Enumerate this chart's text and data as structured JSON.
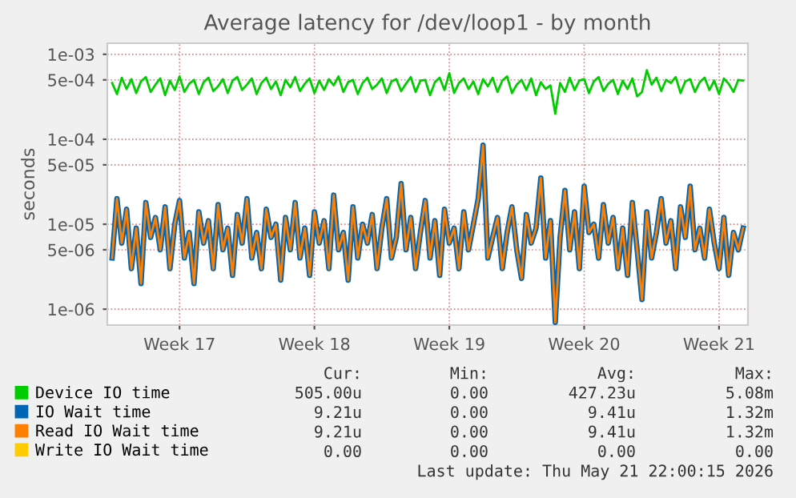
{
  "chart_data": {
    "type": "line",
    "title": "Average latency for /dev/loop1 - by month",
    "ylabel": "seconds",
    "log": "y",
    "grid": true,
    "legend": "bottom",
    "categories": [
      null,
      null,
      null,
      null,
      null,
      null,
      null,
      null,
      null,
      null,
      null,
      null,
      null,
      null,
      "Week 17",
      null,
      null,
      null,
      null,
      null,
      null,
      null,
      null,
      null,
      null,
      null,
      null,
      null,
      null,
      null,
      null,
      null,
      null,
      null,
      null,
      null,
      null,
      null,
      null,
      null,
      null,
      null,
      "Week 18",
      null,
      null,
      null,
      null,
      null,
      null,
      null,
      null,
      null,
      null,
      null,
      null,
      null,
      null,
      null,
      null,
      null,
      null,
      null,
      null,
      null,
      null,
      null,
      null,
      null,
      null,
      null,
      "Week 19",
      null,
      null,
      null,
      null,
      null,
      null,
      null,
      null,
      null,
      null,
      null,
      null,
      null,
      null,
      null,
      null,
      null,
      null,
      null,
      null,
      null,
      null,
      null,
      null,
      null,
      null,
      null,
      "Week 20",
      null,
      null,
      null,
      null,
      null,
      null,
      null,
      null,
      null,
      null,
      null,
      null,
      null,
      null,
      null,
      null,
      null,
      null,
      null,
      null,
      null,
      null,
      null,
      null,
      null,
      null,
      null,
      "Week 21",
      null,
      null,
      null,
      null,
      null
    ],
    "ylim": [
      6.5e-07,
      0.00135
    ],
    "yticks": [
      {
        "value": 1e-06,
        "label": "1e-06"
      },
      {
        "value": 5e-06,
        "label": "5e-06"
      },
      {
        "value": 1e-05,
        "label": "1e-05"
      },
      {
        "value": 5e-05,
        "label": "5e-05"
      },
      {
        "value": 0.0001,
        "label": "1e-04"
      },
      {
        "value": 0.0005,
        "label": "5e-04"
      },
      {
        "value": 0.001,
        "label": "1e-03"
      }
    ],
    "series": [
      {
        "name": "Device IO time",
        "color": "#00cc00",
        "values": [
          0.00046,
          0.00034,
          0.00053,
          0.00039,
          0.00051,
          0.00035,
          0.00048,
          0.00054,
          0.00036,
          0.00044,
          0.00052,
          0.00033,
          0.00049,
          0.00038,
          0.00055,
          0.00036,
          0.00045,
          0.0005,
          0.00034,
          0.00047,
          0.00053,
          0.00037,
          0.00042,
          0.00051,
          0.00035,
          0.00049,
          0.00054,
          0.00038,
          0.00044,
          0.00052,
          0.00034,
          0.00046,
          0.00053,
          0.00039,
          0.00048,
          0.00033,
          0.0005,
          0.00041,
          0.00054,
          0.00037,
          0.00045,
          0.00052,
          0.00035,
          0.00049,
          0.00038,
          0.00051,
          0.00043,
          0.00055,
          0.00036,
          0.00047,
          0.0005,
          0.00034,
          0.00046,
          0.00053,
          0.00039,
          0.00044,
          0.00052,
          0.00035,
          0.00048,
          0.00051,
          0.00037,
          0.00045,
          0.00054,
          0.00036,
          0.00049,
          0.0005,
          0.00033,
          0.00047,
          0.00053,
          0.00038,
          0.0006,
          0.00035,
          0.00046,
          0.00052,
          0.00039,
          0.00048,
          0.00034,
          0.00051,
          0.00042,
          0.00053,
          0.00036,
          0.00049,
          0.00055,
          0.00035,
          0.00044,
          0.0005,
          0.00038,
          0.00052,
          0.00033,
          0.00047,
          0.00039,
          0.00043,
          0.0002,
          0.00046,
          0.00036,
          0.00053,
          0.00038,
          0.00049,
          0.00051,
          0.00035,
          0.00048,
          0.00054,
          0.00037,
          0.00045,
          0.0005,
          0.00034,
          0.00049,
          0.00039,
          0.00052,
          0.00032,
          0.00036,
          0.00065,
          0.00044,
          0.00053,
          0.00037,
          0.0005,
          0.00046,
          0.00054,
          0.00035,
          0.00048,
          0.00051,
          0.00036,
          0.00047,
          0.00053,
          0.00038,
          0.00049,
          0.00034,
          0.00052,
          0.00045,
          0.00036,
          0.0005,
          0.00049
        ]
      },
      {
        "name": "IO Wait time",
        "color": "#0066b3",
        "values": [
          4e-06,
          2e-05,
          6e-06,
          1.5e-05,
          3e-06,
          9e-06,
          2e-06,
          1.8e-05,
          7e-06,
          1.2e-05,
          5e-06,
          1.6e-05,
          3e-06,
          1e-05,
          1.9e-05,
          4e-06,
          8e-06,
          2e-06,
          1.4e-05,
          6e-06,
          1.1e-05,
          3e-06,
          1.7e-05,
          5e-06,
          9e-06,
          2.5e-06,
          1.3e-05,
          6e-06,
          2e-05,
          4e-06,
          8e-06,
          3e-06,
          1.5e-05,
          7e-06,
          1e-05,
          2.2e-06,
          1.2e-05,
          5e-06,
          1.8e-05,
          4e-06,
          9e-06,
          2.5e-06,
          1.4e-05,
          6e-06,
          1.1e-05,
          3e-06,
          2.2e-05,
          5e-06,
          8e-06,
          2.2e-06,
          1.6e-05,
          4e-06,
          1e-05,
          6e-06,
          1.3e-05,
          3e-06,
          9e-06,
          2e-05,
          4e-06,
          7e-06,
          3e-05,
          5e-06,
          1.2e-05,
          3e-06,
          8e-06,
          1.9e-05,
          4e-06,
          1.1e-05,
          2.5e-06,
          1.5e-05,
          6e-06,
          9e-06,
          3e-06,
          1.4e-05,
          5e-06,
          1e-05,
          2e-05,
          8.5e-05,
          4e-06,
          7e-06,
          1.2e-05,
          3e-06,
          8e-06,
          1.6e-05,
          5e-06,
          2.3e-06,
          1.3e-05,
          6e-06,
          9e-06,
          3.5e-05,
          4e-06,
          1.1e-05,
          7e-07,
          7e-06,
          2.5e-05,
          5e-06,
          1.4e-05,
          3e-06,
          2.8e-05,
          8e-06,
          1e-05,
          4e-06,
          1.7e-05,
          6e-06,
          1.2e-05,
          3e-06,
          9e-06,
          2.5e-06,
          1.8e-05,
          5e-06,
          1.3e-06,
          1.4e-05,
          4e-06,
          8e-06,
          2e-05,
          6e-06,
          1.1e-05,
          3e-06,
          1.6e-05,
          7e-06,
          2.8e-05,
          5e-06,
          9e-06,
          4e-06,
          1.5e-05,
          6e-06,
          3e-06,
          1.2e-05,
          2.5e-06,
          8e-06,
          5e-06,
          9e-06
        ]
      },
      {
        "name": "Read IO Wait time",
        "color": "#ff8000",
        "values": [
          4e-06,
          2e-05,
          6e-06,
          1.5e-05,
          3e-06,
          9e-06,
          2e-06,
          1.8e-05,
          7e-06,
          1.2e-05,
          5e-06,
          1.6e-05,
          3e-06,
          1e-05,
          1.9e-05,
          4e-06,
          8e-06,
          2e-06,
          1.4e-05,
          6e-06,
          1.1e-05,
          3e-06,
          1.7e-05,
          5e-06,
          9e-06,
          2.5e-06,
          1.3e-05,
          6e-06,
          2e-05,
          4e-06,
          8e-06,
          3e-06,
          1.5e-05,
          7e-06,
          1e-05,
          2.2e-06,
          1.2e-05,
          5e-06,
          1.8e-05,
          4e-06,
          9e-06,
          2.5e-06,
          1.4e-05,
          6e-06,
          1.1e-05,
          3e-06,
          2.2e-05,
          5e-06,
          8e-06,
          2.2e-06,
          1.6e-05,
          4e-06,
          1e-05,
          6e-06,
          1.3e-05,
          3e-06,
          9e-06,
          2e-05,
          4e-06,
          7e-06,
          3e-05,
          5e-06,
          1.2e-05,
          3e-06,
          8e-06,
          1.9e-05,
          4e-06,
          1.1e-05,
          2.5e-06,
          1.5e-05,
          6e-06,
          9e-06,
          3e-06,
          1.4e-05,
          5e-06,
          1e-05,
          2e-05,
          8.5e-05,
          4e-06,
          7e-06,
          1.2e-05,
          3e-06,
          8e-06,
          1.6e-05,
          5e-06,
          2.3e-06,
          1.3e-05,
          6e-06,
          9e-06,
          3.5e-05,
          4e-06,
          1.1e-05,
          7e-07,
          7e-06,
          2.5e-05,
          5e-06,
          1.4e-05,
          3e-06,
          2.8e-05,
          8e-06,
          1e-05,
          4e-06,
          1.7e-05,
          6e-06,
          1.2e-05,
          3e-06,
          9e-06,
          2.5e-06,
          1.8e-05,
          5e-06,
          1.3e-06,
          1.4e-05,
          4e-06,
          8e-06,
          2e-05,
          6e-06,
          1.1e-05,
          3e-06,
          1.6e-05,
          7e-06,
          2.8e-05,
          5e-06,
          9e-06,
          4e-06,
          1.5e-05,
          6e-06,
          3e-06,
          1.2e-05,
          2.5e-06,
          8e-06,
          5e-06,
          9e-06
        ]
      },
      {
        "name": "Write IO Wait time",
        "color": "#ffcc00",
        "values": [
          null,
          null,
          null,
          null,
          null,
          null,
          null,
          null,
          null,
          null,
          null,
          null,
          null,
          null,
          null,
          null,
          null,
          null,
          null,
          null,
          null,
          null,
          null,
          null,
          null,
          null,
          null,
          null,
          null,
          null,
          null,
          null,
          null,
          null,
          null,
          null,
          null,
          null,
          null,
          null,
          null,
          null,
          null,
          null,
          null,
          null,
          null,
          null,
          null,
          null,
          null,
          null,
          null,
          null,
          null,
          null,
          null,
          null,
          null,
          null,
          null,
          null,
          null,
          null,
          null,
          null,
          null,
          null,
          null,
          null,
          null,
          null,
          null,
          null,
          null,
          null,
          null,
          null,
          null,
          null,
          null,
          null,
          null,
          null,
          null,
          null,
          null,
          null,
          null,
          null,
          null,
          null,
          null,
          null,
          null,
          null,
          null,
          null,
          null,
          null,
          null,
          null,
          null,
          null,
          null,
          null,
          null,
          null,
          null,
          null,
          null,
          null,
          null,
          null,
          null,
          null,
          null,
          null,
          null,
          null,
          null,
          null,
          null,
          null,
          null,
          null,
          null,
          null,
          null,
          null,
          null,
          null
        ]
      }
    ],
    "annotations": [
      "Cur:",
      "Min:",
      "Avg:",
      "Max:",
      "505.00u",
      "0.00",
      "427.23u",
      "5.08m",
      "9.21u",
      "0.00",
      "9.41u",
      "1.32m",
      "9.21u",
      "0.00",
      "9.41u",
      "1.32m",
      "0.00",
      "0.00",
      "0.00",
      "0.00",
      "Last update: Thu May 21 22:00:15 2026"
    ]
  }
}
